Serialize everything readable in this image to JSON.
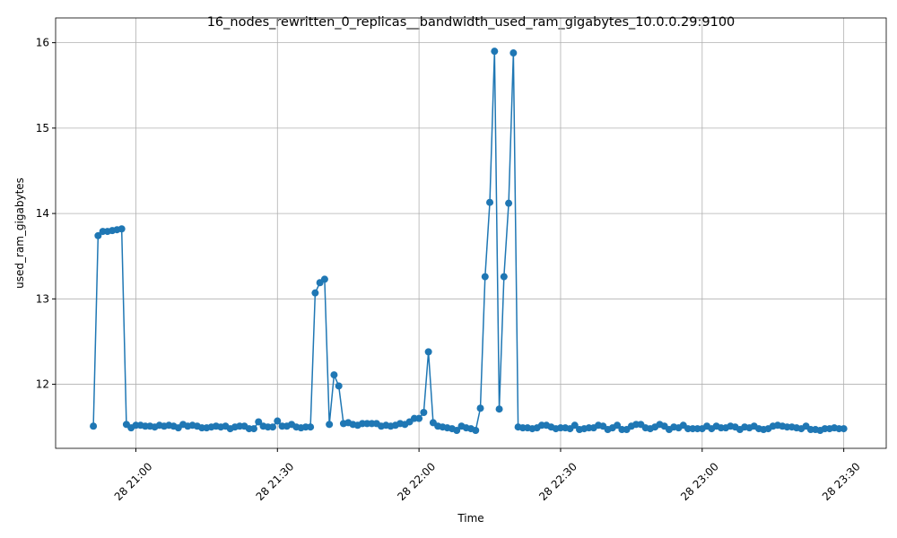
{
  "chart_data": {
    "type": "line",
    "title": "16_nodes_rewritten_0_replicas__bandwidth_used_ram_gigabytes_10.0.0.29:9100",
    "x_label": "Time",
    "y_label": "used_ram_gigabytes",
    "x": [
      "28 20:51",
      "28 20:52",
      "28 20:53",
      "28 20:54",
      "28 20:55",
      "28 20:56",
      "28 20:57",
      "28 20:58",
      "28 20:59",
      "28 21:00",
      "28 21:01",
      "28 21:02",
      "28 21:03",
      "28 21:04",
      "28 21:05",
      "28 21:06",
      "28 21:07",
      "28 21:08",
      "28 21:09",
      "28 21:10",
      "28 21:11",
      "28 21:12",
      "28 21:13",
      "28 21:14",
      "28 21:15",
      "28 21:16",
      "28 21:17",
      "28 21:18",
      "28 21:19",
      "28 21:20",
      "28 21:21",
      "28 21:22",
      "28 21:23",
      "28 21:24",
      "28 21:25",
      "28 21:26",
      "28 21:27",
      "28 21:28",
      "28 21:29",
      "28 21:30",
      "28 21:31",
      "28 21:32",
      "28 21:33",
      "28 21:34",
      "28 21:35",
      "28 21:36",
      "28 21:37",
      "28 21:38",
      "28 21:39",
      "28 21:40",
      "28 21:41",
      "28 21:42",
      "28 21:43",
      "28 21:44",
      "28 21:45",
      "28 21:46",
      "28 21:47",
      "28 21:48",
      "28 21:49",
      "28 21:50",
      "28 21:51",
      "28 21:52",
      "28 21:53",
      "28 21:54",
      "28 21:55",
      "28 21:56",
      "28 21:57",
      "28 21:58",
      "28 21:59",
      "28 22:00",
      "28 22:01",
      "28 22:02",
      "28 22:03",
      "28 22:04",
      "28 22:05",
      "28 22:06",
      "28 22:07",
      "28 22:08",
      "28 22:09",
      "28 22:10",
      "28 22:11",
      "28 22:12",
      "28 22:13",
      "28 22:14",
      "28 22:15",
      "28 22:16",
      "28 22:17",
      "28 22:18",
      "28 22:19",
      "28 22:20",
      "28 22:21",
      "28 22:22",
      "28 22:23",
      "28 22:24",
      "28 22:25",
      "28 22:26",
      "28 22:27",
      "28 22:28",
      "28 22:29",
      "28 22:30",
      "28 22:31",
      "28 22:32",
      "28 22:33",
      "28 22:34",
      "28 22:35",
      "28 22:36",
      "28 22:37",
      "28 22:38",
      "28 22:39",
      "28 22:40",
      "28 22:41",
      "28 22:42",
      "28 22:43",
      "28 22:44",
      "28 22:45",
      "28 22:46",
      "28 22:47",
      "28 22:48",
      "28 22:49",
      "28 22:50",
      "28 22:51",
      "28 22:52",
      "28 22:53",
      "28 22:54",
      "28 22:55",
      "28 22:56",
      "28 22:57",
      "28 22:58",
      "28 22:59",
      "28 23:00",
      "28 23:01",
      "28 23:02",
      "28 23:03",
      "28 23:04",
      "28 23:05",
      "28 23:06",
      "28 23:07",
      "28 23:08",
      "28 23:09",
      "28 23:10",
      "28 23:11",
      "28 23:12",
      "28 23:13",
      "28 23:14",
      "28 23:15",
      "28 23:16",
      "28 23:17",
      "28 23:18",
      "28 23:19",
      "28 23:20",
      "28 23:21",
      "28 23:22",
      "28 23:23",
      "28 23:24",
      "28 23:25",
      "28 23:26",
      "28 23:27",
      "28 23:28",
      "28 23:29",
      "28 23:30"
    ],
    "series": [
      {
        "name": "used_ram_gigabytes",
        "color": "#1f77b4",
        "values": [
          11.51,
          13.74,
          13.79,
          13.79,
          13.8,
          13.81,
          13.82,
          11.53,
          11.49,
          11.52,
          11.52,
          11.51,
          11.51,
          11.5,
          11.52,
          11.51,
          11.52,
          11.51,
          11.49,
          11.53,
          11.51,
          11.52,
          11.51,
          11.49,
          11.49,
          11.5,
          11.51,
          11.5,
          11.51,
          11.48,
          11.5,
          11.51,
          11.51,
          11.48,
          11.48,
          11.56,
          11.51,
          11.5,
          11.5,
          11.57,
          11.51,
          11.51,
          11.53,
          11.5,
          11.49,
          11.5,
          11.5,
          13.07,
          13.19,
          13.23,
          11.53,
          12.11,
          11.98,
          11.54,
          11.55,
          11.53,
          11.52,
          11.54,
          11.54,
          11.54,
          11.54,
          11.51,
          11.52,
          11.51,
          11.52,
          11.54,
          11.53,
          11.56,
          11.6,
          11.6,
          11.67,
          12.38,
          11.55,
          11.51,
          11.5,
          11.49,
          11.48,
          11.46,
          11.51,
          11.49,
          11.48,
          11.46,
          11.72,
          13.26,
          14.13,
          15.9,
          11.71,
          13.26,
          14.12,
          15.88,
          11.5,
          11.49,
          11.49,
          11.48,
          11.49,
          11.52,
          11.52,
          11.5,
          11.48,
          11.49,
          11.49,
          11.48,
          11.52,
          11.47,
          11.48,
          11.49,
          11.49,
          11.52,
          11.51,
          11.47,
          11.49,
          11.52,
          11.47,
          11.47,
          11.51,
          11.53,
          11.53,
          11.49,
          11.48,
          11.5,
          11.53,
          11.51,
          11.47,
          11.5,
          11.49,
          11.52,
          11.48,
          11.48,
          11.48,
          11.48,
          11.51,
          11.48,
          11.51,
          11.49,
          11.49,
          11.51,
          11.5,
          11.47,
          11.5,
          11.49,
          11.51,
          11.48,
          11.47,
          11.48,
          11.51,
          11.52,
          11.51,
          11.5,
          11.5,
          11.49,
          11.48,
          11.51,
          11.47,
          11.47,
          11.46,
          11.48,
          11.48,
          11.49,
          11.48,
          11.48
        ]
      }
    ],
    "xlim": [
      "28 20:43",
      "28 23:39"
    ],
    "xticks": [
      "28 21:00",
      "28 21:30",
      "28 22:00",
      "28 22:30",
      "28 23:00",
      "28 23:30"
    ],
    "ylim": [
      11.25,
      16.29
    ],
    "yticks": [
      12,
      13,
      14,
      15,
      16
    ],
    "grid": true
  }
}
